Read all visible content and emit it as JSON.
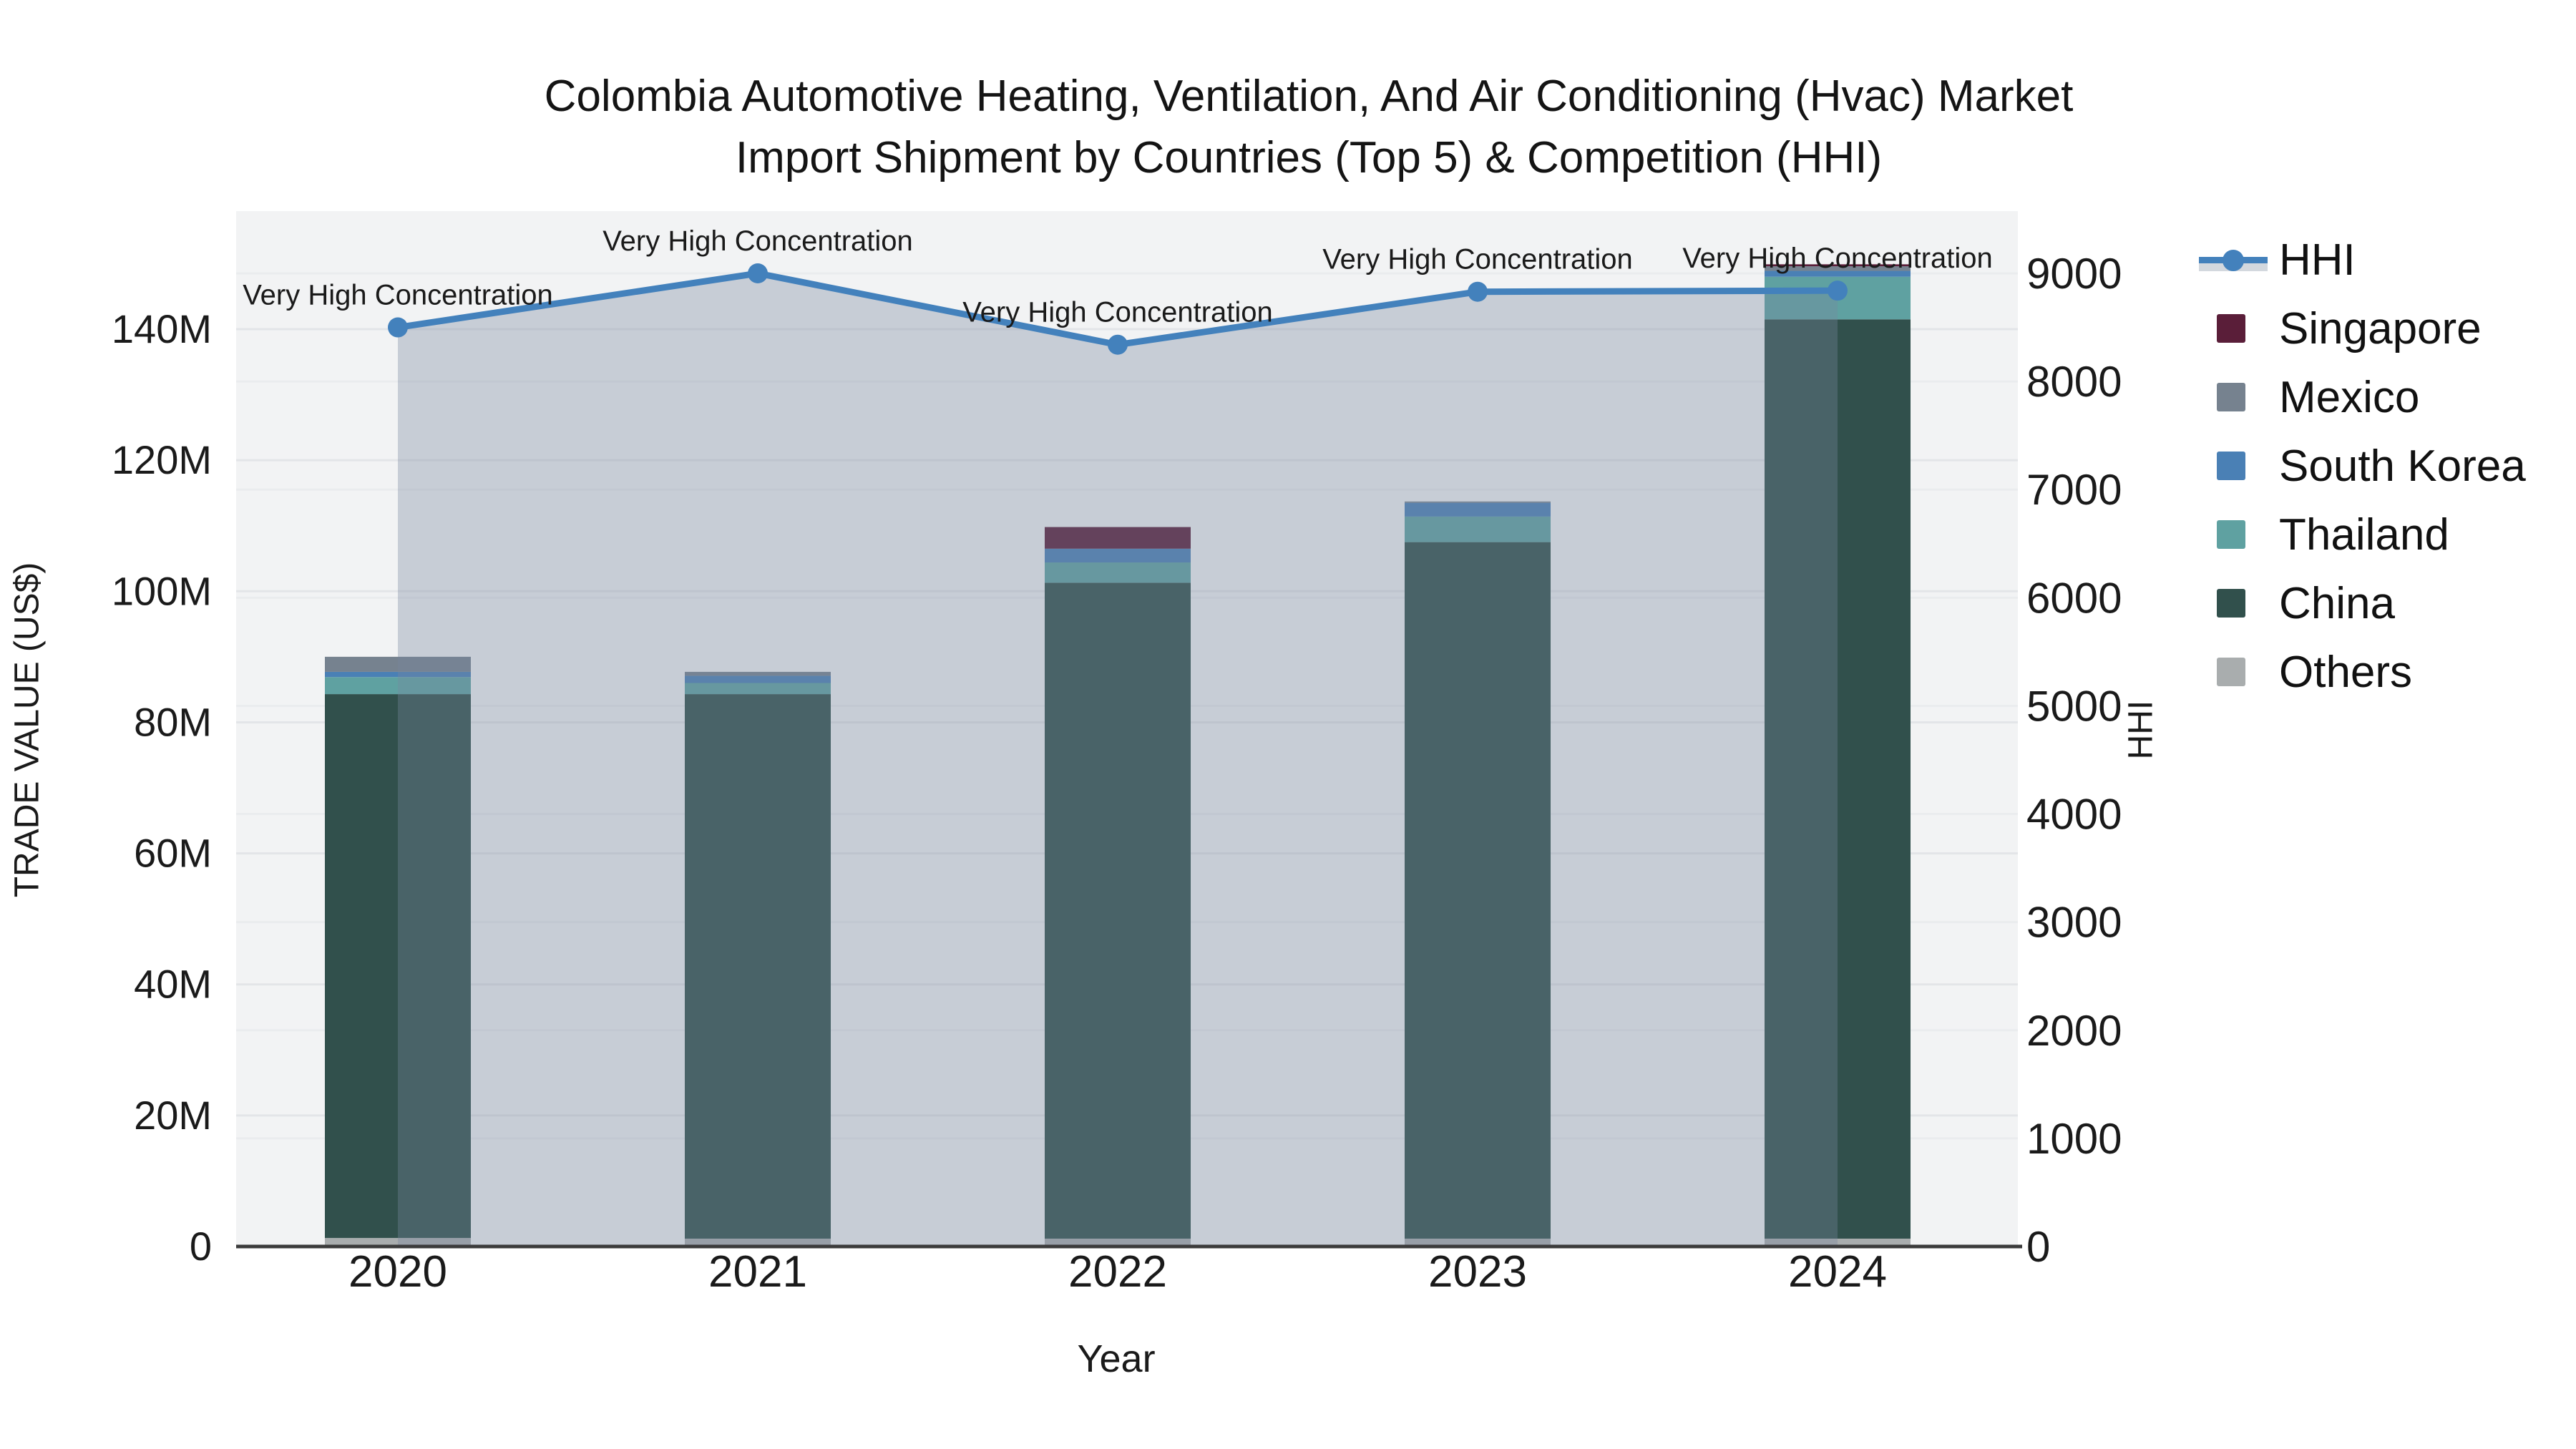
{
  "title": {
    "line1": "Colombia Automotive Heating, Ventilation, And Air Conditioning (Hvac) Market",
    "line2": "Import Shipment by Countries (Top 5) & Competition (HHI)"
  },
  "axes": {
    "left": {
      "title": "TRADE VALUE (US$)",
      "tick_labels": [
        "0",
        "20M",
        "40M",
        "60M",
        "80M",
        "100M",
        "120M",
        "140M"
      ],
      "tick_values": [
        0,
        20,
        40,
        60,
        80,
        100,
        120,
        140
      ]
    },
    "right": {
      "title": "HHI",
      "tick_labels": [
        "0",
        "1000",
        "2000",
        "3000",
        "4000",
        "5000",
        "6000",
        "7000",
        "8000",
        "9000"
      ],
      "tick_values": [
        0,
        1000,
        2000,
        3000,
        4000,
        5000,
        6000,
        7000,
        8000,
        9000
      ]
    },
    "x": {
      "title": "Year",
      "tick_labels": [
        "2020",
        "2021",
        "2022",
        "2023",
        "2024"
      ]
    }
  },
  "legend": {
    "items": [
      {
        "label": "HHI",
        "type": "line",
        "color": "#4381bc"
      },
      {
        "label": "Singapore",
        "type": "box",
        "color": "#5a1e39"
      },
      {
        "label": "Mexico",
        "type": "box",
        "color": "#76828f"
      },
      {
        "label": "South Korea",
        "type": "box",
        "color": "#4a80b5"
      },
      {
        "label": "Thailand",
        "type": "box",
        "color": "#5fa1a1"
      },
      {
        "label": "China",
        "type": "box",
        "color": "#31504c"
      },
      {
        "label": "Others",
        "type": "box",
        "color": "#a9adae"
      }
    ]
  },
  "chart_data": {
    "type": "bar+line",
    "description": "Stacked bars = import trade value (US$ millions, left axis). Line with shaded area = HHI competition index (right axis).",
    "categories": [
      "2020",
      "2021",
      "2022",
      "2023",
      "2024"
    ],
    "bar_unit": "US$ millions",
    "stack_order_bottom_to_top": [
      "Others",
      "China",
      "Thailand",
      "South Korea",
      "Mexico",
      "Singapore"
    ],
    "series": [
      {
        "name": "Others",
        "color": "#a9adae",
        "values": [
          1.3,
          1.2,
          1.2,
          1.2,
          1.2
        ]
      },
      {
        "name": "China",
        "color": "#31504c",
        "values": [
          83.0,
          83.1,
          100.1,
          106.3,
          140.3
        ]
      },
      {
        "name": "Thailand",
        "color": "#5fa1a1",
        "values": [
          2.6,
          1.7,
          3.1,
          3.9,
          6.5
        ]
      },
      {
        "name": "South Korea",
        "color": "#4a80b5",
        "values": [
          0.8,
          1.1,
          2.1,
          2.1,
          0.9
        ]
      },
      {
        "name": "Mexico",
        "color": "#76828f",
        "values": [
          2.3,
          0.6,
          0,
          0.2,
          0.7
        ]
      },
      {
        "name": "Singapore",
        "color": "#5a1e39",
        "values": [
          0,
          0,
          3.3,
          0,
          0.3
        ]
      }
    ],
    "bar_totals": [
      90.0,
      87.7,
      109.8,
      113.7,
      149.9
    ],
    "line_series": {
      "name": "HHI",
      "color": "#4381bc",
      "area_fill": "rgba(120,136,158,0.35)",
      "values": [
        8500,
        9000,
        8340,
        8830,
        8840
      ],
      "annotations": [
        "Very High Concentration",
        "Very High Concentration",
        "Very High Concentration",
        "Very High Concentration",
        "Very High Concentration"
      ]
    },
    "ylabel": "TRADE VALUE (US$)",
    "ylabel_right": "HHI",
    "xlabel": "Year",
    "ylim_left": [
      0,
      158
    ],
    "ylim_right": [
      0,
      9575
    ],
    "grid": true,
    "legend_position": "right",
    "plot_bg": "#f2f3f4"
  }
}
